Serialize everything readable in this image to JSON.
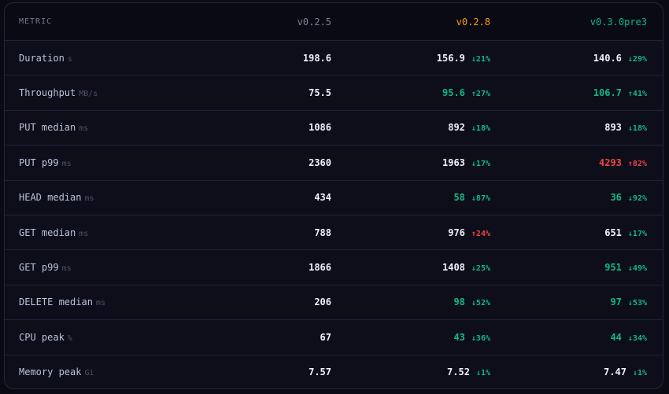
{
  "header": {
    "metric": "METRIC",
    "versions": [
      {
        "label": "v0.2.5",
        "color": "#7a8197"
      },
      {
        "label": "v0.2.8",
        "color": "#f59e0b"
      },
      {
        "label": "v0.3.0pre3",
        "color": "#10b981"
      }
    ]
  },
  "colors": {
    "neutral": "#eef1f8",
    "good": "#10b981",
    "bad": "#ef4444"
  },
  "rows": [
    {
      "label": "Duration",
      "unit": "s",
      "cells": [
        {
          "value": "198.6",
          "tone": "neutral"
        },
        {
          "value": "156.9",
          "tone": "neutral",
          "delta": "↓21%",
          "delta_tone": "good"
        },
        {
          "value": "140.6",
          "tone": "neutral",
          "delta": "↓29%",
          "delta_tone": "good"
        }
      ]
    },
    {
      "label": "Throughput",
      "unit": "MB/s",
      "cells": [
        {
          "value": "75.5",
          "tone": "neutral"
        },
        {
          "value": "95.6",
          "tone": "good",
          "delta": "↑27%",
          "delta_tone": "good"
        },
        {
          "value": "106.7",
          "tone": "good",
          "delta": "↑41%",
          "delta_tone": "good"
        }
      ]
    },
    {
      "label": "PUT median",
      "unit": "ms",
      "cells": [
        {
          "value": "1086",
          "tone": "neutral"
        },
        {
          "value": "892",
          "tone": "neutral",
          "delta": "↓18%",
          "delta_tone": "good"
        },
        {
          "value": "893",
          "tone": "neutral",
          "delta": "↓18%",
          "delta_tone": "good"
        }
      ]
    },
    {
      "label": "PUT p99",
      "unit": "ms",
      "cells": [
        {
          "value": "2360",
          "tone": "neutral"
        },
        {
          "value": "1963",
          "tone": "neutral",
          "delta": "↓17%",
          "delta_tone": "good"
        },
        {
          "value": "4293",
          "tone": "bad",
          "delta": "↑82%",
          "delta_tone": "bad"
        }
      ]
    },
    {
      "label": "HEAD median",
      "unit": "ms",
      "cells": [
        {
          "value": "434",
          "tone": "neutral"
        },
        {
          "value": "58",
          "tone": "good",
          "delta": "↓87%",
          "delta_tone": "good"
        },
        {
          "value": "36",
          "tone": "good",
          "delta": "↓92%",
          "delta_tone": "good"
        }
      ]
    },
    {
      "label": "GET median",
      "unit": "ms",
      "cells": [
        {
          "value": "788",
          "tone": "neutral"
        },
        {
          "value": "976",
          "tone": "neutral",
          "delta": "↑24%",
          "delta_tone": "bad"
        },
        {
          "value": "651",
          "tone": "neutral",
          "delta": "↓17%",
          "delta_tone": "good"
        }
      ]
    },
    {
      "label": "GET p99",
      "unit": "ms",
      "cells": [
        {
          "value": "1866",
          "tone": "neutral"
        },
        {
          "value": "1408",
          "tone": "neutral",
          "delta": "↓25%",
          "delta_tone": "good"
        },
        {
          "value": "951",
          "tone": "good",
          "delta": "↓49%",
          "delta_tone": "good"
        }
      ]
    },
    {
      "label": "DELETE median",
      "unit": "ms",
      "cells": [
        {
          "value": "206",
          "tone": "neutral"
        },
        {
          "value": "98",
          "tone": "good",
          "delta": "↓52%",
          "delta_tone": "good"
        },
        {
          "value": "97",
          "tone": "good",
          "delta": "↓53%",
          "delta_tone": "good"
        }
      ]
    },
    {
      "label": "CPU peak",
      "unit": "%",
      "cells": [
        {
          "value": "67",
          "tone": "neutral"
        },
        {
          "value": "43",
          "tone": "good",
          "delta": "↓36%",
          "delta_tone": "good"
        },
        {
          "value": "44",
          "tone": "good",
          "delta": "↓34%",
          "delta_tone": "good"
        }
      ]
    },
    {
      "label": "Memory peak",
      "unit": "Gi",
      "cells": [
        {
          "value": "7.57",
          "tone": "neutral"
        },
        {
          "value": "7.52",
          "tone": "neutral",
          "delta": "↓1%",
          "delta_tone": "good"
        },
        {
          "value": "7.47",
          "tone": "neutral",
          "delta": "↓1%",
          "delta_tone": "good"
        }
      ]
    }
  ]
}
